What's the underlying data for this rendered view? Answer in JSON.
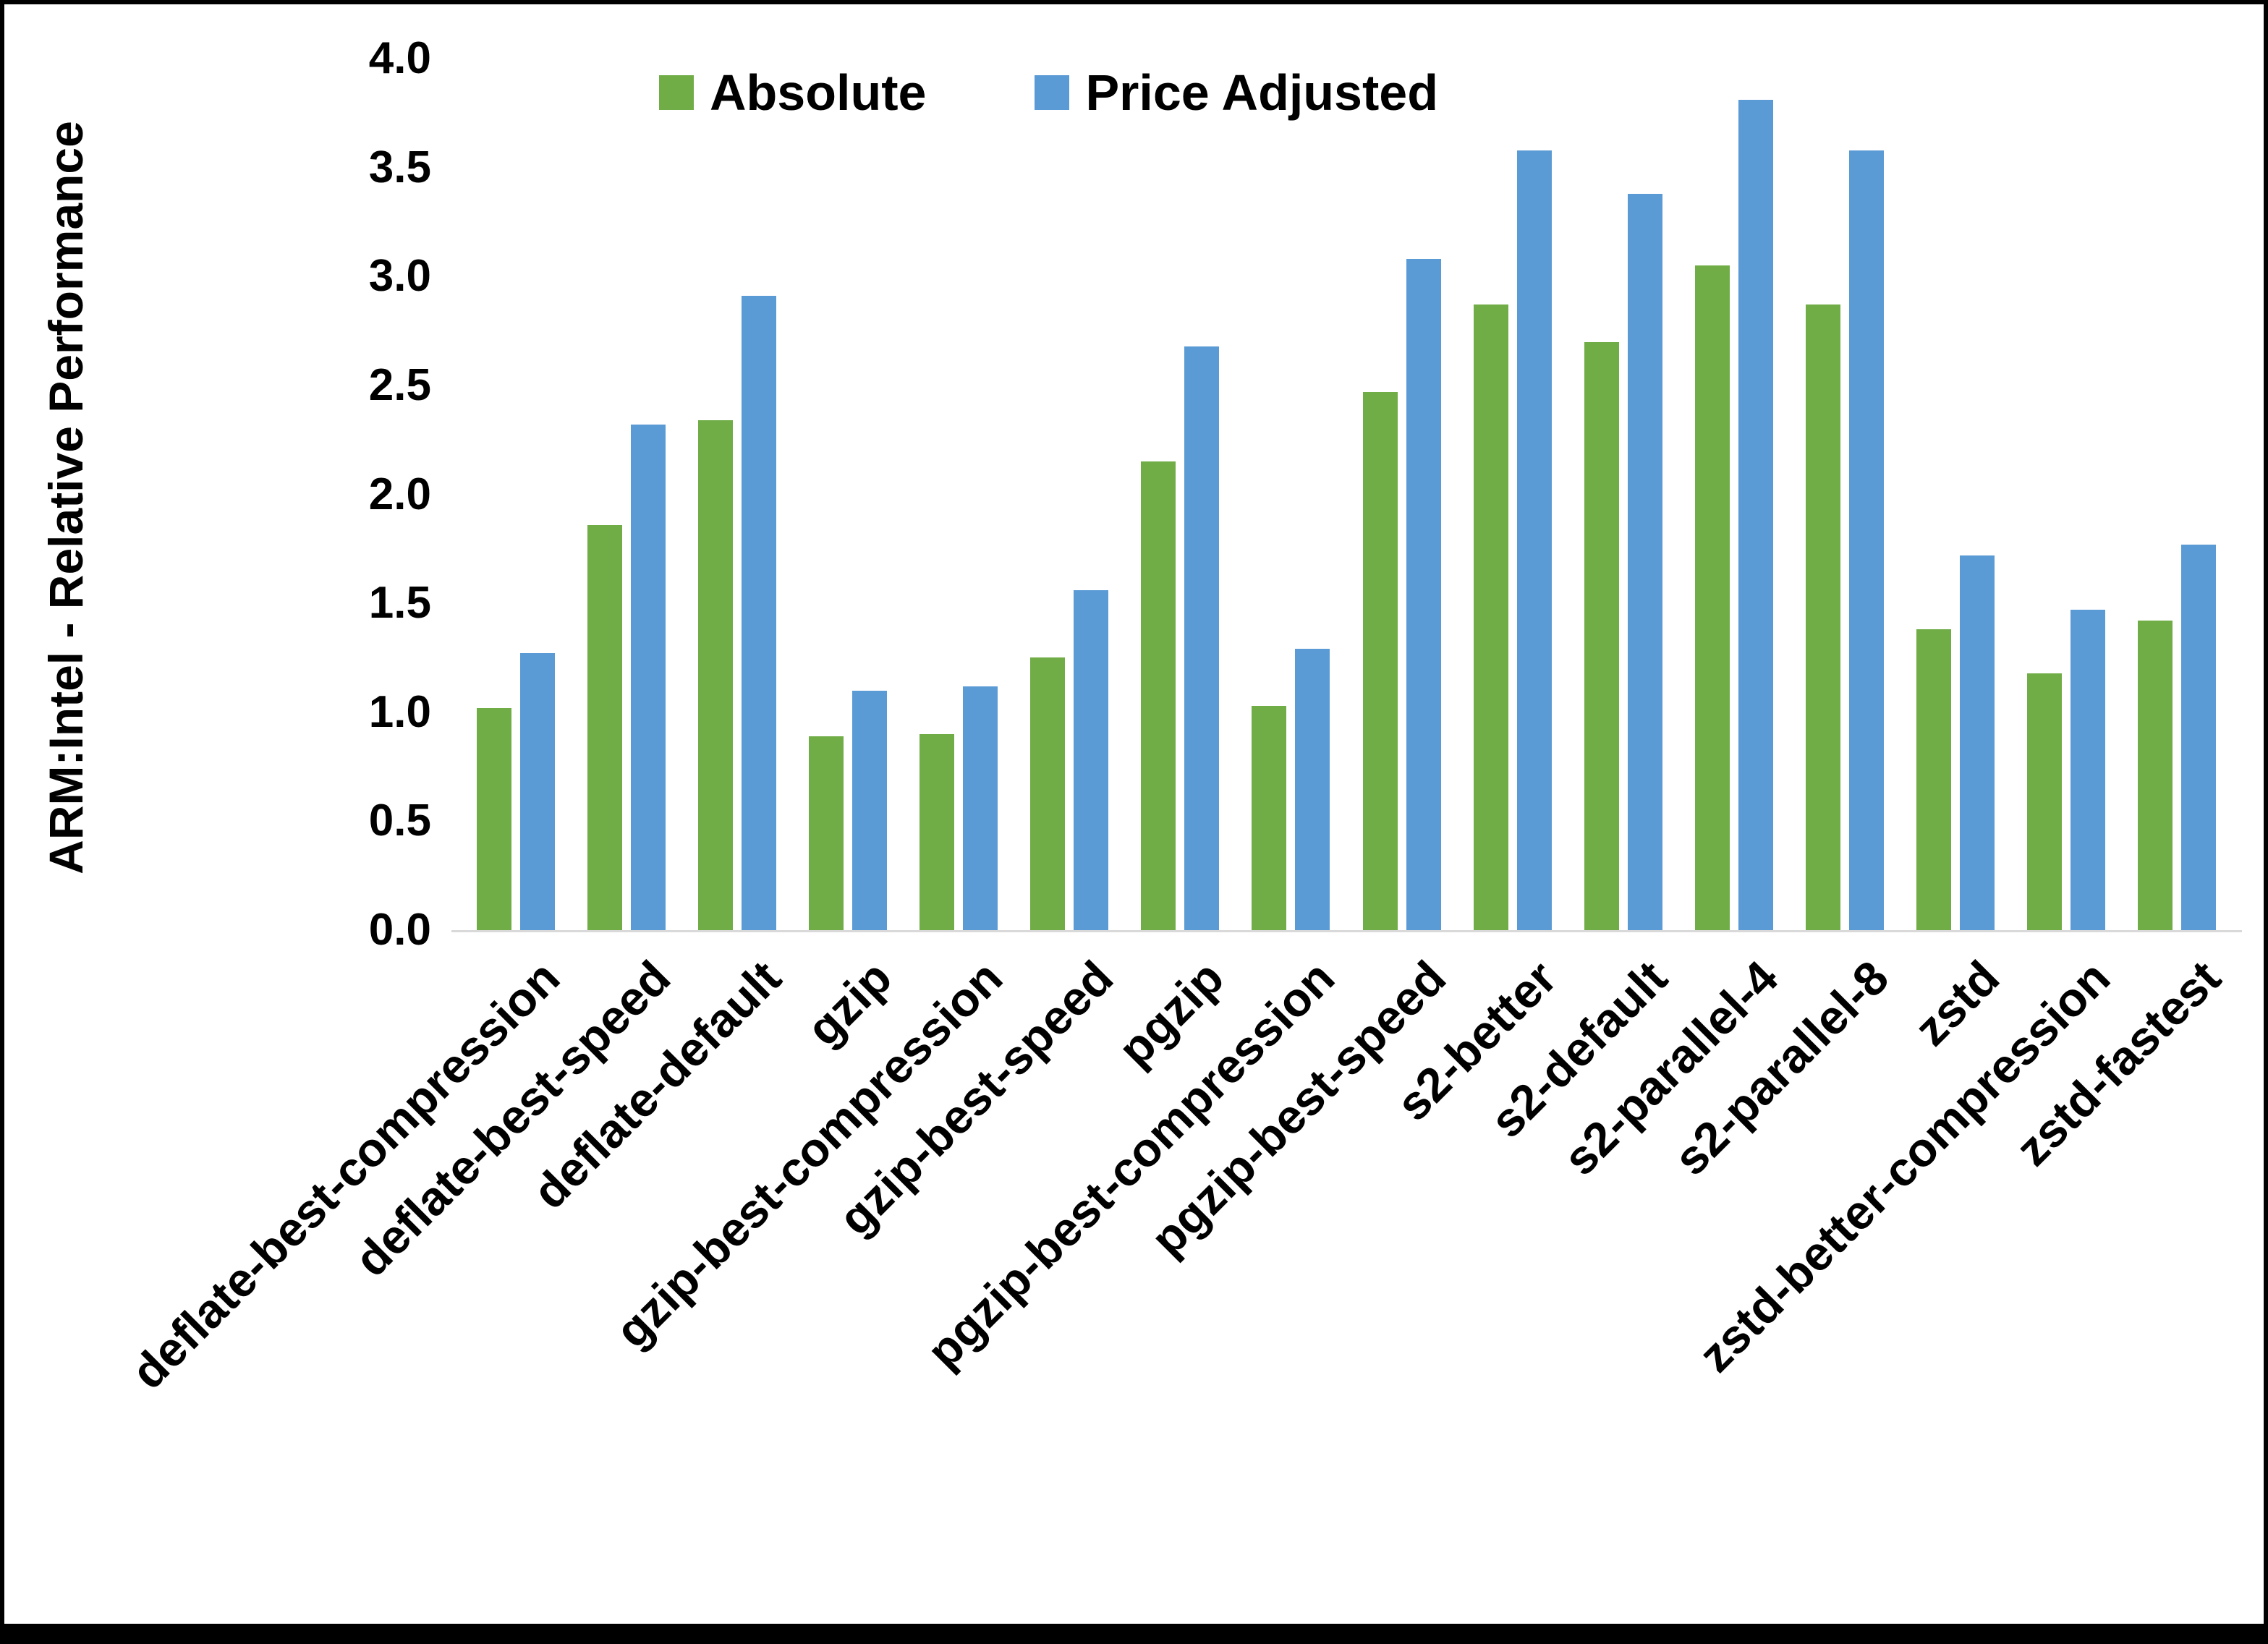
{
  "chart_data": {
    "type": "bar",
    "title": "",
    "ylabel": "ARM:Intel - Relative Performance",
    "xlabel": "",
    "ylim": [
      0.0,
      4.0
    ],
    "ytick_labels": [
      "4.0",
      "3.5",
      "3.0",
      "2.5",
      "2.0",
      "1.5",
      "1.0",
      "0.5",
      "0.0"
    ],
    "grid": false,
    "legend_position": "top",
    "background_color": "#FFFFFF",
    "axis_line_color": "#D9D9D9",
    "text_color": "#000000",
    "categories": [
      "deflate-best-compression",
      "deflate-best-speed",
      "deflate-default",
      "gzip",
      "gzip-best-compression",
      "gzip-best-speed",
      "pgzip",
      "pgzip-best-compression",
      "pgzip-best-speed",
      "s2-better",
      "s2-default",
      "s2-parallel-4",
      "s2-parallel-8",
      "zstd",
      "zstd-better-compression",
      "zstd-fastest"
    ],
    "series": [
      {
        "name": "Absolute",
        "color": "#70AD47",
        "values": [
          1.02,
          1.86,
          2.34,
          0.89,
          0.9,
          1.25,
          2.15,
          1.03,
          2.47,
          2.87,
          2.7,
          3.05,
          2.87,
          1.38,
          1.18,
          1.42
        ]
      },
      {
        "name": "Price Adjusted",
        "color": "#5B9BD5",
        "values": [
          1.27,
          2.32,
          2.91,
          1.1,
          1.12,
          1.56,
          2.68,
          1.29,
          3.08,
          3.58,
          3.38,
          3.81,
          3.58,
          1.72,
          1.47,
          1.77
        ]
      }
    ]
  }
}
